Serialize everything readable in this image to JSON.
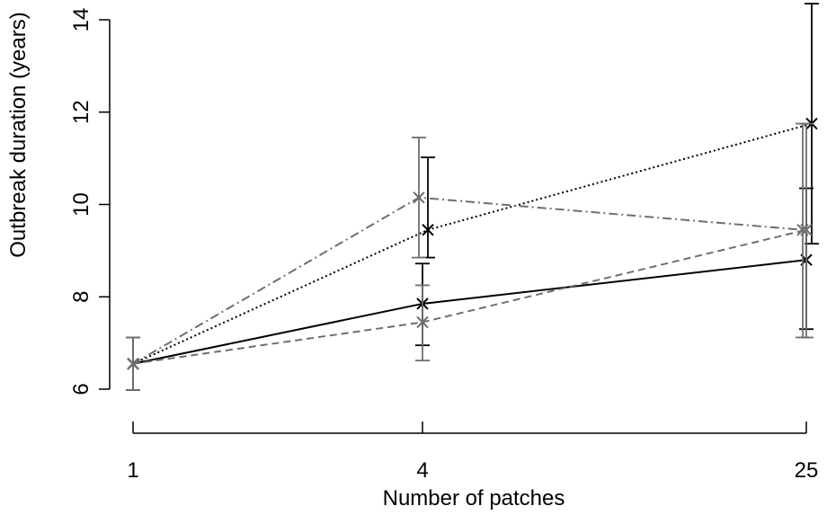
{
  "chart_data": {
    "type": "line",
    "xlabel": "Number of patches",
    "ylabel": "Outbreak duration (years)",
    "x_ticks": [
      "1",
      "4",
      "25"
    ],
    "y_ticks": [
      6,
      8,
      10,
      12,
      14
    ],
    "ylim": [
      6,
      14
    ],
    "grid": false,
    "legend": "none",
    "series": [
      {
        "line_style": "solid",
        "color": "#000000",
        "x": [
          "1",
          "4",
          "25"
        ],
        "values": [
          6.55,
          7.85,
          8.8
        ],
        "error_low": [
          5.98,
          6.95,
          7.3
        ],
        "error_high": [
          7.12,
          8.72,
          10.35
        ]
      },
      {
        "line_style": "dotted",
        "color": "#000000",
        "x": [
          "1",
          "4",
          "25"
        ],
        "values": [
          6.55,
          9.45,
          11.75
        ],
        "error_low": [
          5.98,
          8.85,
          9.15
        ],
        "error_high": [
          7.12,
          11.02,
          14.35
        ]
      },
      {
        "line_style": "dashed",
        "color": "#6e6e6e",
        "x": [
          "1",
          "4",
          "25"
        ],
        "values": [
          6.55,
          7.45,
          9.45
        ],
        "error_low": [
          5.98,
          6.62,
          7.12
        ],
        "error_high": [
          7.12,
          8.25,
          11.75
        ]
      },
      {
        "line_style": "dashdot",
        "color": "#6e6e6e",
        "x": [
          "1",
          "4",
          "25"
        ],
        "values": [
          6.55,
          10.15,
          9.45
        ],
        "error_low": [
          5.98,
          8.85,
          7.12
        ],
        "error_high": [
          7.12,
          11.45,
          11.75
        ]
      }
    ]
  }
}
